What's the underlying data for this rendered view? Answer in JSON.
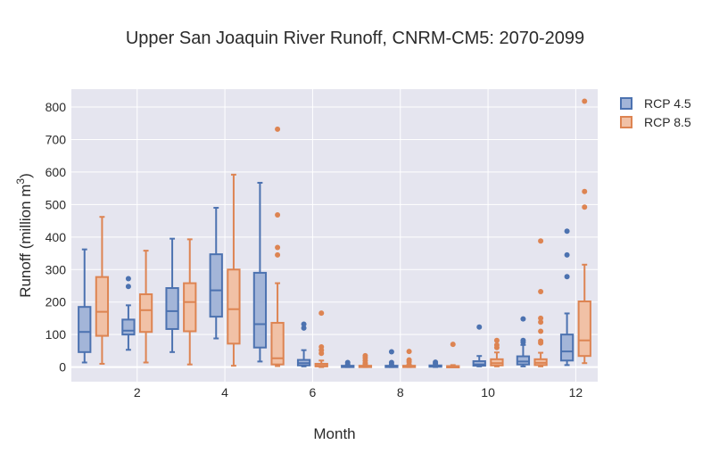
{
  "chart_data": {
    "type": "box",
    "title": "Upper San Joaquin River Runoff, CNRM-CM5: 2070-2099",
    "xlabel": "Month",
    "ylabel_main": "Runoff (million m",
    "ylabel_sup": "3",
    "ylabel_close": ")",
    "ylim": [
      -45,
      855
    ],
    "xlim": [
      0.5,
      12.5
    ],
    "yticks": [
      0,
      100,
      200,
      300,
      400,
      500,
      600,
      700,
      800
    ],
    "xticks": [
      2,
      4,
      6,
      8,
      10,
      12
    ],
    "legend_position": "top-right",
    "series": [
      {
        "name": "RCP 4.5",
        "color": "#4c72b0",
        "fill": "#a3b5d8",
        "boxes": [
          {
            "month": 1,
            "lower": 14,
            "q1": 46,
            "median": 108,
            "q3": 185,
            "upper": 362,
            "outliers": []
          },
          {
            "month": 2,
            "lower": 53,
            "q1": 100,
            "median": 112,
            "q3": 146,
            "upper": 190,
            "outliers": [
              248,
              272
            ]
          },
          {
            "month": 3,
            "lower": 46,
            "q1": 117,
            "median": 172,
            "q3": 243,
            "upper": 395,
            "outliers": []
          },
          {
            "month": 4,
            "lower": 88,
            "q1": 155,
            "median": 236,
            "q3": 347,
            "upper": 490,
            "outliers": []
          },
          {
            "month": 5,
            "lower": 17,
            "q1": 60,
            "median": 132,
            "q3": 290,
            "upper": 567,
            "outliers": []
          },
          {
            "month": 6,
            "lower": 2,
            "q1": 5,
            "median": 12,
            "q3": 22,
            "upper": 52,
            "outliers": [
              120,
              132
            ]
          },
          {
            "month": 7,
            "lower": 0,
            "q1": 1,
            "median": 2,
            "q3": 4,
            "upper": 8,
            "outliers": [
              14
            ]
          },
          {
            "month": 8,
            "lower": 0,
            "q1": 1,
            "median": 2,
            "q3": 4,
            "upper": 8,
            "outliers": [
              14,
              47
            ]
          },
          {
            "month": 9,
            "lower": 0,
            "q1": 1,
            "median": 2,
            "q3": 5,
            "upper": 10,
            "outliers": [
              15
            ]
          },
          {
            "month": 10,
            "lower": 2,
            "q1": 4,
            "median": 8,
            "q3": 18,
            "upper": 34,
            "outliers": [
              123
            ]
          },
          {
            "month": 11,
            "lower": 2,
            "q1": 8,
            "median": 17,
            "q3": 33,
            "upper": 68,
            "outliers": [
              76,
              82,
              148
            ]
          },
          {
            "month": 12,
            "lower": 6,
            "q1": 20,
            "median": 48,
            "q3": 100,
            "upper": 165,
            "outliers": [
              278,
              345,
              418
            ]
          }
        ]
      },
      {
        "name": "RCP 8.5",
        "color": "#dd8452",
        "fill": "#f1c1a6",
        "boxes": [
          {
            "month": 1,
            "lower": 10,
            "q1": 96,
            "median": 170,
            "q3": 277,
            "upper": 462,
            "outliers": []
          },
          {
            "month": 2,
            "lower": 14,
            "q1": 108,
            "median": 175,
            "q3": 224,
            "upper": 358,
            "outliers": []
          },
          {
            "month": 3,
            "lower": 8,
            "q1": 110,
            "median": 200,
            "q3": 258,
            "upper": 393,
            "outliers": []
          },
          {
            "month": 4,
            "lower": 4,
            "q1": 72,
            "median": 178,
            "q3": 300,
            "upper": 592,
            "outliers": []
          },
          {
            "month": 5,
            "lower": 3,
            "q1": 8,
            "median": 27,
            "q3": 136,
            "upper": 258,
            "outliers": [
              345,
              368,
              468,
              732
            ]
          },
          {
            "month": 6,
            "lower": 0,
            "q1": 2,
            "median": 4,
            "q3": 10,
            "upper": 20,
            "outliers": [
              42,
              52,
              62,
              166
            ]
          },
          {
            "month": 7,
            "lower": 0,
            "q1": 1,
            "median": 2,
            "q3": 4,
            "upper": 8,
            "outliers": [
              12,
              20,
              28,
              35
            ]
          },
          {
            "month": 8,
            "lower": 0,
            "q1": 1,
            "median": 2,
            "q3": 4,
            "upper": 8,
            "outliers": [
              16,
              22,
              48
            ]
          },
          {
            "month": 9,
            "lower": 0,
            "q1": 1,
            "median": 2,
            "q3": 3,
            "upper": 6,
            "outliers": [
              70
            ]
          },
          {
            "month": 10,
            "lower": 2,
            "q1": 5,
            "median": 12,
            "q3": 24,
            "upper": 45,
            "outliers": [
              60,
              68,
              82
            ]
          },
          {
            "month": 11,
            "lower": 2,
            "q1": 6,
            "median": 13,
            "q3": 24,
            "upper": 44,
            "outliers": [
              74,
              80,
              110,
              138,
              150,
              232,
              388
            ]
          },
          {
            "month": 12,
            "lower": 12,
            "q1": 34,
            "median": 82,
            "q3": 202,
            "upper": 315,
            "outliers": [
              492,
              540,
              818
            ]
          }
        ]
      }
    ]
  }
}
